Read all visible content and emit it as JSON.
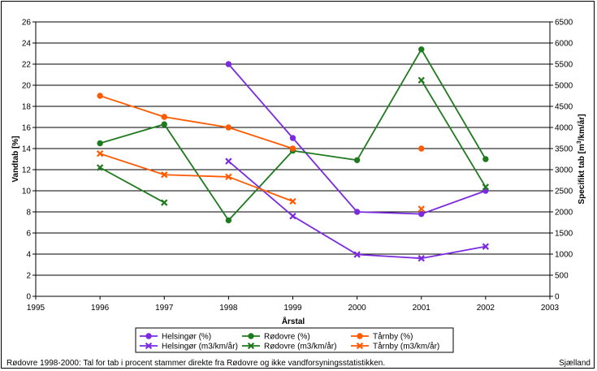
{
  "chart_data": {
    "type": "line",
    "title": "",
    "xlabel": "Årstal",
    "ylabel_left": "Vandtab [%]",
    "ylabel_right_prefix": "Specifikt tab [m",
    "ylabel_right_sup": "3",
    "ylabel_right_suffix": "/km/år]",
    "xlim": [
      1995,
      2003
    ],
    "ylim_left": [
      0,
      26
    ],
    "ylim_right": [
      0,
      6500
    ],
    "x_ticks": [
      "1995",
      "1996",
      "1997",
      "1998",
      "1999",
      "2000",
      "2001",
      "2002",
      "2003"
    ],
    "y_left_ticks": [
      "0",
      "2",
      "4",
      "6",
      "8",
      "10",
      "12",
      "14",
      "16",
      "18",
      "20",
      "22",
      "24",
      "26"
    ],
    "y_right_ticks": [
      "0",
      "500",
      "1000",
      "1500",
      "2000",
      "2500",
      "3000",
      "3500",
      "4000",
      "4500",
      "5000",
      "5500",
      "6000",
      "6500"
    ],
    "grid": "horizontal",
    "legend_position": "bottom",
    "series": [
      {
        "name": "Helsingør (%)",
        "axis": "left",
        "color": "#7b2ae0",
        "marker": "circle",
        "points": [
          [
            1998,
            22.0
          ],
          [
            1999,
            15.0
          ],
          [
            2000,
            8.0
          ],
          [
            2001,
            7.8
          ],
          [
            2002,
            10.0
          ]
        ]
      },
      {
        "name": "Rødovre (%)",
        "axis": "left",
        "color": "#1f7a1f",
        "marker": "circle",
        "points": [
          [
            1996,
            14.5
          ],
          [
            1997,
            16.3
          ],
          [
            1998,
            7.2
          ],
          [
            1999,
            13.8
          ],
          [
            2000,
            12.9
          ],
          [
            2001,
            23.4
          ],
          [
            2002,
            13.0
          ]
        ]
      },
      {
        "name": "Tårnby (%)",
        "axis": "left",
        "color": "#ff5a00",
        "marker": "circle",
        "points": [
          [
            1996,
            19.0
          ],
          [
            1997,
            17.0
          ],
          [
            1998,
            16.0
          ],
          [
            1999,
            14.0
          ],
          [
            2001,
            14.0
          ]
        ]
      },
      {
        "name": "Helsingør (m3/km/år)",
        "axis": "right",
        "color": "#7b2ae0",
        "marker": "cross",
        "points": [
          [
            1998,
            3200
          ],
          [
            1999,
            1900
          ],
          [
            2000,
            990
          ],
          [
            2001,
            900
          ],
          [
            2002,
            1180
          ]
        ]
      },
      {
        "name": "Rødovre (m3/km/år)",
        "axis": "right",
        "color": "#1f7a1f",
        "marker": "cross",
        "points": [
          [
            1996,
            3050
          ],
          [
            1997,
            2220
          ],
          [
            2001,
            5120
          ],
          [
            2002,
            2590
          ]
        ]
      },
      {
        "name": "Tårnby (m3/km/år)",
        "axis": "right",
        "color": "#ff5a00",
        "marker": "cross",
        "points": [
          [
            1996,
            3380
          ],
          [
            1997,
            2880
          ],
          [
            1998,
            2830
          ],
          [
            1999,
            2250
          ],
          [
            2001,
            2070
          ]
        ]
      }
    ]
  },
  "footnote": "Rødovre 1998-2000: Tal for tab i procent stammer direkte fra Rødovre og ikke vandforsyningsstatistikken.",
  "region": "Sjælland"
}
